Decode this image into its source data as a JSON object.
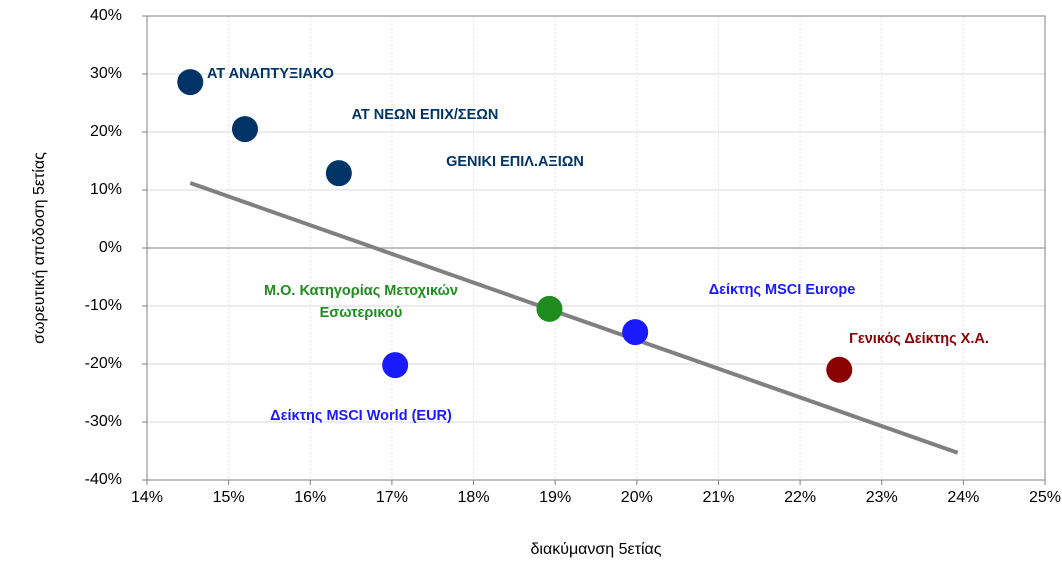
{
  "chart_data": {
    "type": "scatter",
    "x_label": "διακύμανση 5ετίας",
    "y_label": "σωρευτική απόδοση 5ετίας",
    "series": [
      {
        "name": "ΑΤ ΑΝΑΠΤΥΞΙΑΚΟ",
        "color": "#003366",
        "x": [
          14.53
        ],
        "values": [
          28.6
        ]
      },
      {
        "name": "ΑΤ ΝΕΩΝ ΕΠΙΧ/ΣΕΩΝ",
        "color": "#003366",
        "x": [
          15.2
        ],
        "values": [
          20.5
        ]
      },
      {
        "name": "GENIKI ΕΠΙΛ.ΑΞΙΩΝ",
        "color": "#003366",
        "x": [
          16.35
        ],
        "values": [
          12.9
        ]
      },
      {
        "name": "Μ.Ο. Κατηγορίας Μετοχικών Εσωτερικού",
        "color": "#1e8c1e",
        "x": [
          18.93
        ],
        "values": [
          -10.5
        ]
      },
      {
        "name": "Δείκτης MSCI Europe",
        "color": "#1a1aff",
        "x": [
          19.98
        ],
        "values": [
          -14.5
        ]
      },
      {
        "name": "Δείκτης MSCI World (EUR)",
        "color": "#1a1aff",
        "x": [
          17.04
        ],
        "values": [
          -20.2
        ]
      },
      {
        "name": "Γενικός Δείκτης Χ.Α.",
        "color": "#8b0000",
        "x": [
          22.48
        ],
        "values": [
          -21.0
        ]
      }
    ],
    "trendline": {
      "color": "#808080",
      "x": [
        14.53,
        23.93
      ],
      "values": [
        11.2,
        -35.3
      ]
    },
    "xlim": [
      14,
      25
    ],
    "xticks": [
      {
        "value": 14,
        "label": "14%"
      },
      {
        "value": 15,
        "label": "15%"
      },
      {
        "value": 16,
        "label": "16%"
      },
      {
        "value": 17,
        "label": "17%"
      },
      {
        "value": 18,
        "label": "18%"
      },
      {
        "value": 19,
        "label": "19%"
      },
      {
        "value": 20,
        "label": "20%"
      },
      {
        "value": 21,
        "label": "21%"
      },
      {
        "value": 22,
        "label": "22%"
      },
      {
        "value": 23,
        "label": "23%"
      },
      {
        "value": 24,
        "label": "24%"
      },
      {
        "value": 25,
        "label": "25%"
      }
    ],
    "ylim": [
      -40,
      40
    ],
    "yticks": [
      {
        "value": -40,
        "label": "-40%"
      },
      {
        "value": -30,
        "label": "-30%"
      },
      {
        "value": -20,
        "label": "-20%"
      },
      {
        "value": -10,
        "label": "-10%"
      },
      {
        "value": 0,
        "label": "0%"
      },
      {
        "value": 10,
        "label": "10%"
      },
      {
        "value": 20,
        "label": "20%"
      },
      {
        "value": 30,
        "label": "30%"
      },
      {
        "value": 40,
        "label": "40%"
      }
    ],
    "grid": true
  }
}
